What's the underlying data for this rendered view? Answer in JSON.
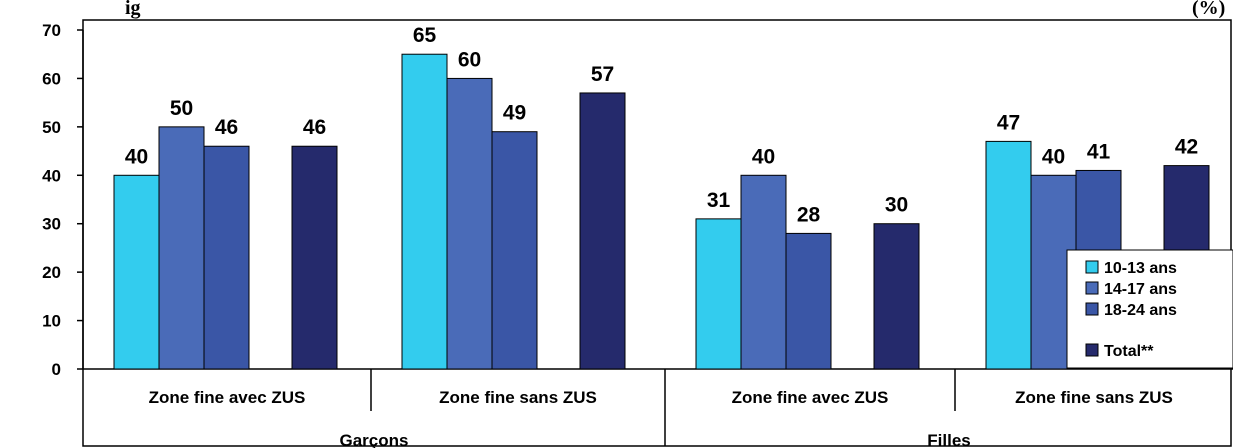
{
  "title_fragment_left": "ig",
  "title_fragment_right": "(%)",
  "chart_data": {
    "type": "bar",
    "groups": [
      {
        "label": "Garçons",
        "categories": [
          "Zone fine avec ZUS",
          "Zone fine sans ZUS"
        ]
      },
      {
        "label": "Filles",
        "categories": [
          "Zone fine avec ZUS",
          "Zone fine sans ZUS"
        ]
      }
    ],
    "categories": [
      "Zone fine avec ZUS",
      "Zone fine sans ZUS",
      "Zone fine avec ZUS",
      "Zone fine sans ZUS"
    ],
    "series": [
      {
        "name": "10-13 ans",
        "color": "#33CCEE",
        "values": [
          40,
          65,
          31,
          47
        ],
        "labels": [
          "40",
          "65",
          "31",
          "47"
        ]
      },
      {
        "name": "14-17 ans",
        "color": "#4A6BB8",
        "values": [
          50,
          60,
          40,
          40
        ],
        "labels": [
          "50",
          "60",
          "40",
          "40"
        ]
      },
      {
        "name": "18-24 ans",
        "color": "#3A56A6",
        "values": [
          46,
          49,
          28,
          41
        ],
        "labels": [
          "46",
          "49",
          "28",
          "41"
        ]
      },
      {
        "name": "Total**",
        "color": "#252A6C",
        "values": [
          46,
          57,
          30,
          42
        ],
        "labels": [
          "46",
          "57",
          "30",
          "42"
        ]
      }
    ],
    "ylim": [
      0,
      70
    ],
    "yticks": [
      "0",
      "10",
      "20",
      "30",
      "40",
      "50",
      "60",
      "70"
    ],
    "grid": false,
    "legend_position": "right"
  }
}
